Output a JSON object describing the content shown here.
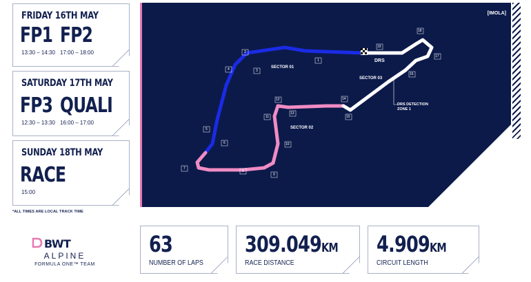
{
  "schedule": {
    "friday": {
      "title": "FRIDAY 16TH MAY",
      "s1": "FP1",
      "s1_time": "13:30 – 14:30",
      "s2": "FP2",
      "s2_time": "17:00 – 18:00"
    },
    "saturday": {
      "title": "SATURDAY 17TH MAY",
      "s1": "FP3",
      "s1_time": "12:30 – 13:30",
      "s2": "QUALI",
      "s2_time": "16:00 – 17:00"
    },
    "sunday": {
      "title": "SUNDAY 18TH MAY",
      "s1": "RACE",
      "s1_time": "15:00"
    },
    "note": "*ALL TIMES ARE LOCAL TRACK TIME"
  },
  "map": {
    "circuit_tag": "[IMOLA]",
    "labels": {
      "sector1": "SECTOR 01",
      "sector2": "SECTOR 02",
      "sector3": "SECTOR 03",
      "drs": "DRS",
      "drs_zone_1": "DRS DETECTION",
      "drs_zone_2": "ZONE 1"
    },
    "turns": [
      "1",
      "2",
      "3",
      "4",
      "5",
      "6",
      "7",
      "8",
      "9",
      "10",
      "11",
      "12",
      "13",
      "14",
      "15",
      "16",
      "17",
      "18",
      "19"
    ],
    "colors": {
      "sector1": "#1a2be6",
      "sector2": "#f08cc4",
      "sector3": "#ffffff",
      "background": "#0c1a4a"
    }
  },
  "stats": {
    "laps": {
      "value": "63",
      "unit": "",
      "label": "NUMBER OF LAPS"
    },
    "distance": {
      "value": "309.049",
      "unit": "KM",
      "label": "RACE DISTANCE"
    },
    "length": {
      "value": "4.909",
      "unit": "KM",
      "label": "CIRCUIT LENGTH"
    }
  },
  "logo": {
    "brand": "BWT",
    "name": "ALPINE",
    "team": "FORMULA ONE™ TEAM"
  }
}
